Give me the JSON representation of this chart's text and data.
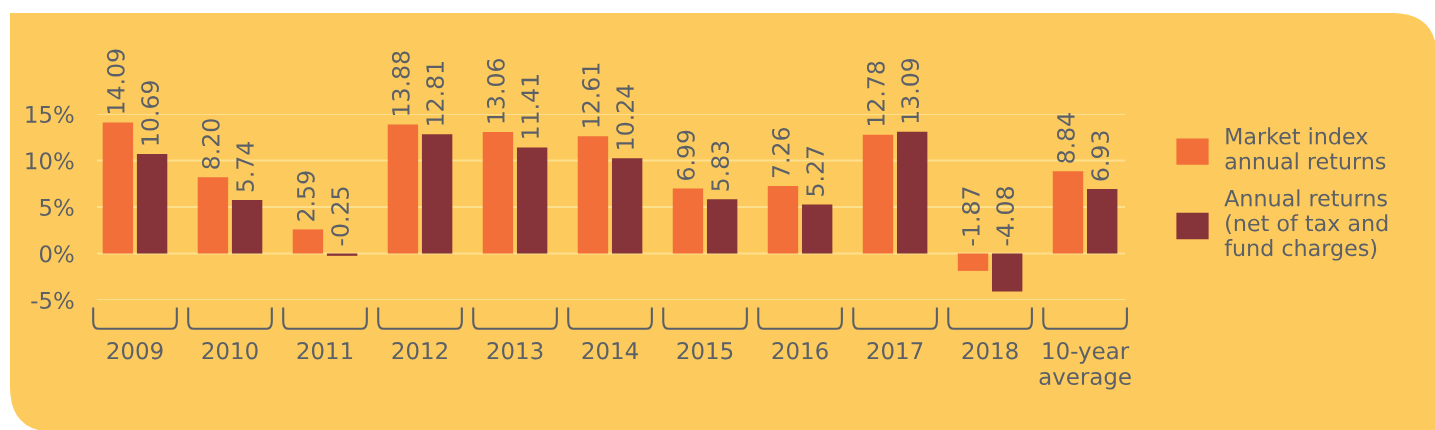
{
  "chart_data": {
    "type": "bar",
    "categories": [
      "2009",
      "2010",
      "2011",
      "2012",
      "2013",
      "2014",
      "2015",
      "2016",
      "2017",
      "2018",
      "10-year\naverage"
    ],
    "series": [
      {
        "name": "Market index\nannual returns",
        "color": "#f26f3a",
        "values": [
          14.09,
          8.2,
          2.59,
          13.88,
          13.06,
          12.61,
          6.99,
          7.26,
          12.78,
          -1.87,
          8.84
        ],
        "value_labels": [
          "14.09",
          "8.20",
          "2.59",
          "13.88",
          "13.06",
          "12.61",
          "6.99",
          "7.26",
          "12.78",
          "-1.87",
          "8.84"
        ]
      },
      {
        "name": "Annual returns\n(net of tax and\nfund charges)",
        "color": "#863339",
        "values": [
          10.69,
          5.74,
          -0.25,
          12.81,
          11.41,
          10.24,
          5.83,
          5.27,
          13.09,
          -4.08,
          6.93
        ],
        "value_labels": [
          "10.69",
          "5.74",
          "-0.25",
          "12.81",
          "11.41",
          "10.24",
          "5.83",
          "5.27",
          "13.09",
          "-4.08",
          "6.93"
        ]
      }
    ],
    "ylim": [
      -5,
      15
    ],
    "yticks": [
      {
        "value": -5,
        "label": "-5%"
      },
      {
        "value": 0,
        "label": "0%"
      },
      {
        "value": 5,
        "label": "5%"
      },
      {
        "value": 10,
        "label": "10%"
      },
      {
        "value": 15,
        "label": "15%"
      }
    ],
    "grid": "y",
    "legend": "right"
  }
}
